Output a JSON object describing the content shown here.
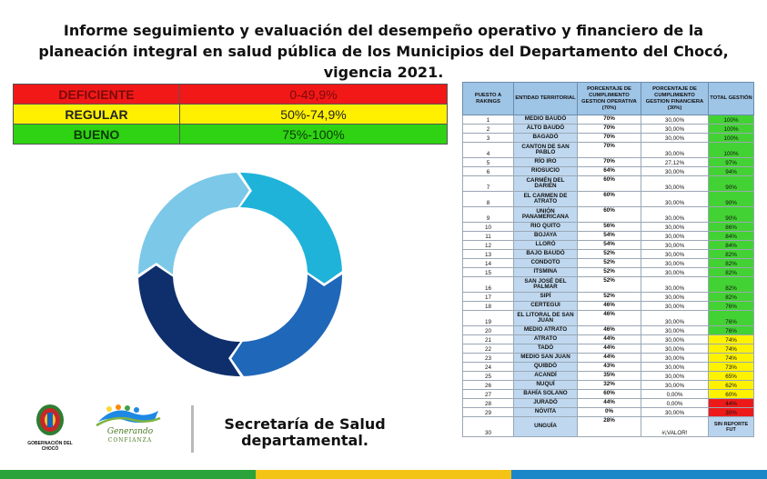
{
  "title": "Informe seguimiento y evaluación del desempeño operativo y financiero de la planeación integral en salud pública de los Municipios del Departamento del Chocó, vigencia 2021.",
  "legend": [
    {
      "name": "DEFICIENTE",
      "range": "0-49,9%",
      "color": "#f21818"
    },
    {
      "name": "REGULAR",
      "range": "50%-74,9%",
      "color": "#fff000"
    },
    {
      "name": "BUENO",
      "range": "75%-100%",
      "color": "#2fd313"
    }
  ],
  "donut": {
    "colors": [
      "#1fb3d9",
      "#1f67b8",
      "#0e2f6c",
      "#7cc8e8"
    ]
  },
  "table": {
    "headers": {
      "position": "PUESTO A RAKINGS",
      "entity": "ENTIDAD TERRITORIAL",
      "operative": "PORCENTAJE DE CUMPLIMIENTO GESTION OPERATIVA (70%)",
      "financial": "PORCENTAJE DE CUMPLIMIENTO GESTION FINANCIERA (30%)",
      "total": "TOTAL GESTIÓN"
    },
    "rows": [
      {
        "pos": "1",
        "entity": "MEDIO BAUDÓ",
        "op": "70%",
        "fin": "30,00%",
        "total": "100%",
        "status": "green",
        "h": 10
      },
      {
        "pos": "2",
        "entity": "ALTO BAUDÓ",
        "op": "70%",
        "fin": "30,00%",
        "total": "100%",
        "status": "green",
        "h": 10
      },
      {
        "pos": "3",
        "entity": "BAGADÓ",
        "op": "70%",
        "fin": "30,00%",
        "total": "100%",
        "status": "green",
        "h": 10
      },
      {
        "pos": "4",
        "entity": "CANTON DE SAN PABLO",
        "op": "70%",
        "fin": "30,00%",
        "total": "100%",
        "status": "green",
        "h": 17
      },
      {
        "pos": "5",
        "entity": "RÍO IRO",
        "op": "70%",
        "fin": "27,12%",
        "total": "97%",
        "status": "green",
        "h": 10
      },
      {
        "pos": "6",
        "entity": "RIOSUCIO",
        "op": "64%",
        "fin": "30,00%",
        "total": "94%",
        "status": "green",
        "h": 10
      },
      {
        "pos": "7",
        "entity": "CARMÉN DEL DARIÉN",
        "op": "60%",
        "fin": "30,00%",
        "total": "90%",
        "status": "green",
        "h": 17
      },
      {
        "pos": "8",
        "entity": "EL CARMEN DE ATRATO",
        "op": "60%",
        "fin": "30,00%",
        "total": "90%",
        "status": "green",
        "h": 17
      },
      {
        "pos": "9",
        "entity": "UNIÓN PANAMERICANA",
        "op": "60%",
        "fin": "30,00%",
        "total": "90%",
        "status": "green",
        "h": 17
      },
      {
        "pos": "10",
        "entity": "RIO QUITO",
        "op": "56%",
        "fin": "30,00%",
        "total": "86%",
        "status": "green",
        "h": 10
      },
      {
        "pos": "11",
        "entity": "BOJAYA",
        "op": "54%",
        "fin": "30,00%",
        "total": "84%",
        "status": "green",
        "h": 10
      },
      {
        "pos": "12",
        "entity": "LLORÓ",
        "op": "54%",
        "fin": "30,00%",
        "total": "84%",
        "status": "green",
        "h": 10
      },
      {
        "pos": "13",
        "entity": "BAJO BAUDÓ",
        "op": "52%",
        "fin": "30,00%",
        "total": "82%",
        "status": "green",
        "h": 10
      },
      {
        "pos": "14",
        "entity": "CONDOTO",
        "op": "52%",
        "fin": "30,00%",
        "total": "82%",
        "status": "green",
        "h": 10
      },
      {
        "pos": "15",
        "entity": "ITSMINA",
        "op": "52%",
        "fin": "30,00%",
        "total": "82%",
        "status": "green",
        "h": 10
      },
      {
        "pos": "16",
        "entity": "SAN JOSÉ DEL PALMAR",
        "op": "52%",
        "fin": "30,00%",
        "total": "82%",
        "status": "green",
        "h": 17
      },
      {
        "pos": "17",
        "entity": "SIPÍ",
        "op": "52%",
        "fin": "30,00%",
        "total": "82%",
        "status": "green",
        "h": 10
      },
      {
        "pos": "18",
        "entity": "CERTEGUI",
        "op": "46%",
        "fin": "30,00%",
        "total": "76%",
        "status": "green",
        "h": 10
      },
      {
        "pos": "19",
        "entity": "EL LITORAL DE SAN JUAN",
        "op": "46%",
        "fin": "30,00%",
        "total": "76%",
        "status": "green",
        "h": 17
      },
      {
        "pos": "20",
        "entity": "MEDIO ATRATO",
        "op": "46%",
        "fin": "30,00%",
        "total": "76%",
        "status": "green",
        "h": 10
      },
      {
        "pos": "21",
        "entity": "ATRATO",
        "op": "44%",
        "fin": "30,00%",
        "total": "74%",
        "status": "yellow",
        "h": 10
      },
      {
        "pos": "22",
        "entity": "TADÓ",
        "op": "44%",
        "fin": "30,00%",
        "total": "74%",
        "status": "yellow",
        "h": 10
      },
      {
        "pos": "23",
        "entity": "MEDIO SAN JUAN",
        "op": "44%",
        "fin": "30,00%",
        "total": "74%",
        "status": "yellow",
        "h": 10
      },
      {
        "pos": "24",
        "entity": "QUIBDÓ",
        "op": "43%",
        "fin": "30,00%",
        "total": "73%",
        "status": "yellow",
        "h": 10
      },
      {
        "pos": "25",
        "entity": "ACANDÍ",
        "op": "35%",
        "fin": "30,00%",
        "total": "65%",
        "status": "yellow",
        "h": 10
      },
      {
        "pos": "26",
        "entity": "NUQUÍ",
        "op": "32%",
        "fin": "30,00%",
        "total": "62%",
        "status": "yellow",
        "h": 10
      },
      {
        "pos": "27",
        "entity": "BAHÍA SOLANO",
        "op": "60%",
        "fin": "0,00%",
        "total": "60%",
        "status": "yellow",
        "h": 10
      },
      {
        "pos": "28",
        "entity": "JURADÓ",
        "op": "44%",
        "fin": "0,00%",
        "total": "44%",
        "status": "red",
        "h": 10
      },
      {
        "pos": "29",
        "entity": "NÓVITA",
        "op": "0%",
        "fin": "30,00%",
        "total": "30%",
        "status": "red",
        "h": 10
      },
      {
        "pos": "30",
        "entity": "UNGUÍA",
        "op": "28%",
        "fin": "#¡VALOR!",
        "total": "SIN REPORTE FUT",
        "status": "blue",
        "h": 22
      }
    ]
  },
  "footer": {
    "gobernacion": "GOBERNACIÓN DEL CHOCÓ",
    "generando_line1": "Generando",
    "generando_line2": "CONFIANZA",
    "secretaria": "Secretaría de Salud departamental."
  },
  "stripe_colors": [
    "#2aa33a",
    "#f3c316",
    "#1b86c8"
  ]
}
